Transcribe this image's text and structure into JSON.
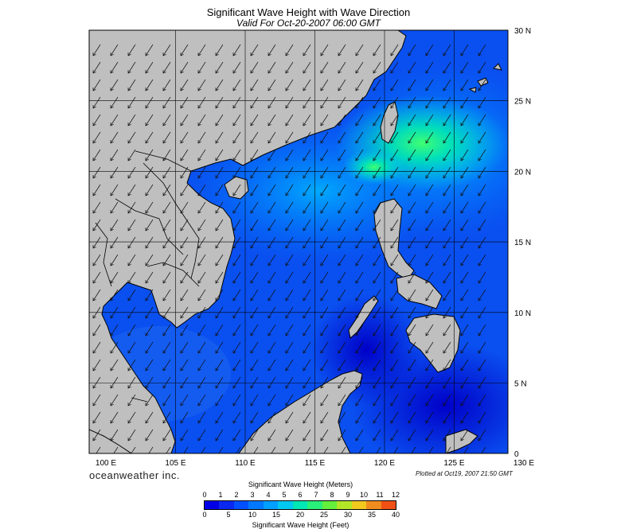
{
  "title": "Significant Wave Height with Wave Direction",
  "subtitle": "Valid For Oct-20-2007 06:00 GMT",
  "brand": "oceanweather inc.",
  "plotted": "Plotted at Oct19, 2007 21:50 GMT",
  "lon_labels": [
    "100 E",
    "105 E",
    "110 E",
    "115 E",
    "120 E",
    "125 E",
    "130 E"
  ],
  "lat_labels": [
    "30 N",
    "25 N",
    "20 N",
    "15 N",
    "10 N",
    "5 N",
    "0"
  ],
  "colorbar": {
    "title_top": "Significant Wave Height (Meters)",
    "title_bottom": "Significant Wave Height (Feet)",
    "meters": [
      "0",
      "1",
      "2",
      "3",
      "4",
      "5",
      "6",
      "7",
      "8",
      "9",
      "10",
      "11",
      "12"
    ],
    "feet": [
      "0",
      "5",
      "10",
      "15",
      "20",
      "25",
      "30",
      "35",
      "40"
    ],
    "colors": [
      "#0000e6",
      "#0a28f0",
      "#0050ff",
      "#0078ff",
      "#00a0ff",
      "#00c8f0",
      "#00e6b4",
      "#28f078",
      "#64f03c",
      "#b4e628",
      "#f0c81e",
      "#f08c1e",
      "#f05014"
    ]
  },
  "colors": {
    "land": "#bfbfbf",
    "deep_blue": "#0000d0",
    "swell_blue": "#0050f0",
    "peak_cyan": "#00e6b4"
  }
}
